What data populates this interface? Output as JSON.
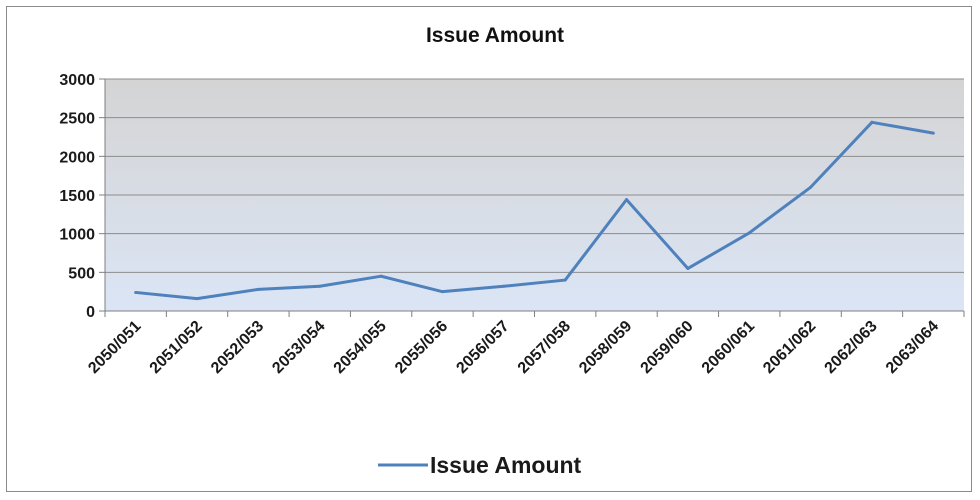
{
  "chart_data": {
    "type": "line",
    "title": "Issue Amount",
    "categories": [
      "2050/051",
      "2051/052",
      "2052/053",
      "2053/054",
      "2054/055",
      "2055/056",
      "2056/057",
      "2057/058",
      "2058/059",
      "2059/060",
      "2060/061",
      "2061/062",
      "2062/063",
      "2063/064"
    ],
    "series": [
      {
        "name": "Issue Amount",
        "values": [
          240,
          160,
          280,
          320,
          450,
          250,
          320,
          400,
          1440,
          550,
          1010,
          1600,
          2440,
          2300
        ]
      }
    ],
    "ylim": [
      0,
      3000
    ],
    "yticks": [
      0,
      500,
      1000,
      1500,
      2000,
      2500,
      3000
    ],
    "grid": true,
    "legend": "bottom",
    "colors": {
      "line": "#4f81bd",
      "plot_top": "#d4d4d4",
      "plot_bottom": "#dbe5f5",
      "grid": "#8c8c8c"
    }
  }
}
